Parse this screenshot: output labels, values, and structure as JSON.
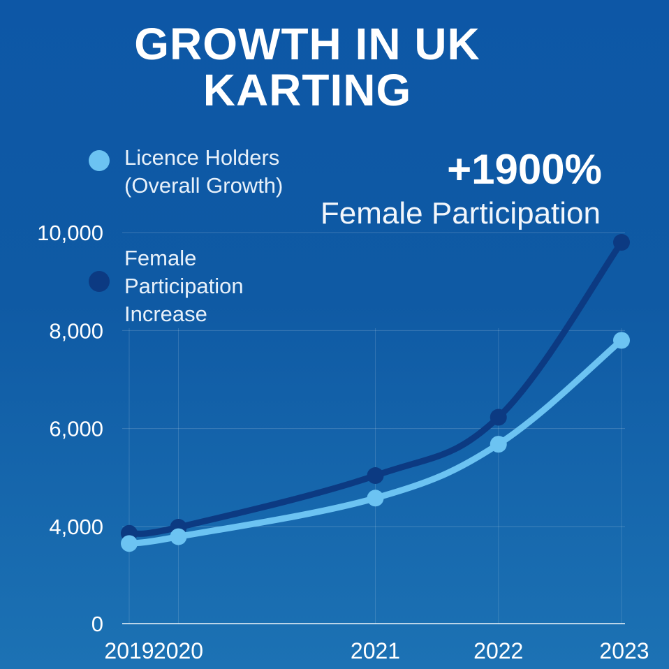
{
  "chart_data": {
    "type": "line",
    "title": "GROWTH IN UK KARTING",
    "x": [
      "2019",
      "2020",
      "2021",
      "2022",
      "2023"
    ],
    "x_positions": [
      2019.0,
      2019.4,
      2021.0,
      2022.0,
      2023.0
    ],
    "ylim": [
      0,
      10000
    ],
    "yticks": [
      0,
      4000,
      6000,
      8000,
      10000
    ],
    "ytick_labels": [
      "0",
      "4,000",
      "6,000",
      "8,000",
      "10,000"
    ],
    "grid": true,
    "series": [
      {
        "name": "Licence Holders (Overall Growth)",
        "color": "#6cc3f2",
        "values": [
          3300,
          3580,
          4580,
          5680,
          7800
        ]
      },
      {
        "name": "Female Participation Increase",
        "color": "#0c3a82",
        "values": [
          3720,
          3970,
          5040,
          6230,
          9800
        ]
      }
    ],
    "annotations": [
      {
        "text": "+1900%",
        "subtext": "Female Participation"
      }
    ]
  },
  "legend": [
    {
      "label": "Licence Holders (Overall Growth)",
      "color": "#6cc3f2"
    },
    {
      "label": "Female Participation Increase",
      "color": "#0c3a82"
    }
  ]
}
